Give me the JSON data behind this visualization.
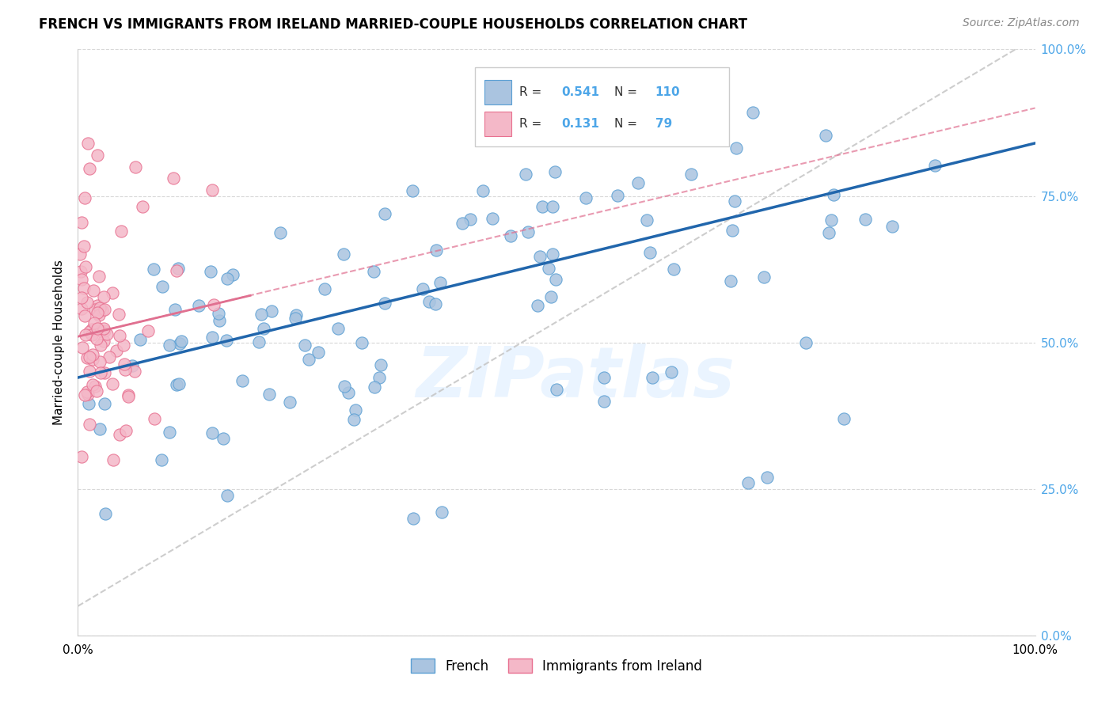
{
  "title": "FRENCH VS IMMIGRANTS FROM IRELAND MARRIED-COUPLE HOUSEHOLDS CORRELATION CHART",
  "source": "Source: ZipAtlas.com",
  "ylabel": "Married-couple Households",
  "legend_french_label": "French",
  "legend_ireland_label": "Immigrants from Ireland",
  "r_french": "0.541",
  "n_french": "110",
  "r_ireland": "0.131",
  "n_ireland": "79",
  "watermark": "ZIPatlas",
  "french_color": "#aac4e0",
  "french_edge_color": "#5a9fd4",
  "ireland_color": "#f4b8c8",
  "ireland_edge_color": "#e87090",
  "french_line_color": "#2166ac",
  "ireland_line_color": "#e07090",
  "dashed_line_color": "#c8c8c8",
  "ytick_values": [
    0.0,
    0.25,
    0.5,
    0.75,
    1.0
  ],
  "ytick_labels": [
    "0.0%",
    "25.0%",
    "50.0%",
    "75.0%",
    "100.0%"
  ],
  "right_tick_color": "#4da6e8",
  "grid_color": "#d8d8d8"
}
